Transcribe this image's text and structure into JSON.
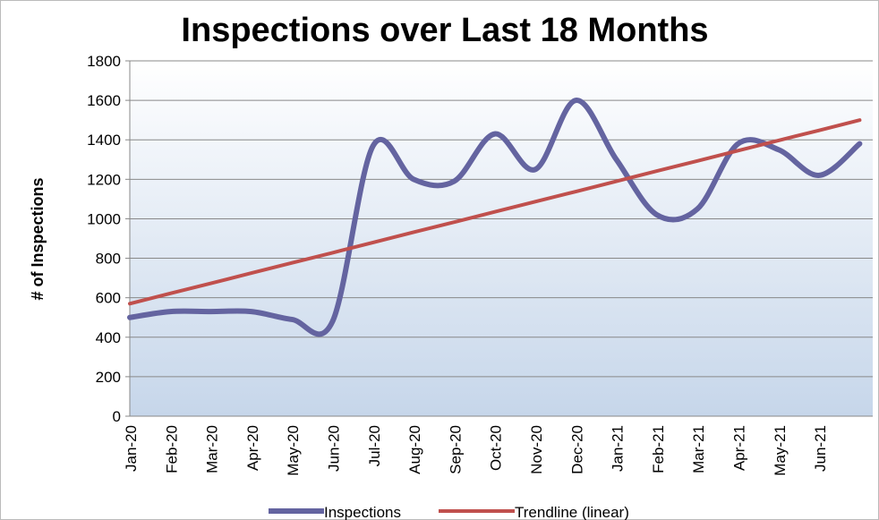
{
  "chart_data": {
    "type": "line",
    "title": "Inspections over Last 18 Months",
    "y_label": "# of Inspections",
    "categories": [
      "Jan-20",
      "Feb-20",
      "Mar-20",
      "Apr-20",
      "May-20",
      "Jun-20",
      "Jul-20",
      "Aug-20",
      "Sep-20",
      "Oct-20",
      "Nov-20",
      "Dec-20",
      "Jan-21",
      "Feb-21",
      "Mar-21",
      "Apr-21",
      "May-21",
      "Jun-21",
      null
    ],
    "series": [
      {
        "name": "Inspections",
        "color": "#6464a0",
        "smooth": true,
        "values": [
          500,
          530,
          530,
          530,
          490,
          480,
          1370,
          1200,
          1190,
          1430,
          1250,
          1600,
          1300,
          1020,
          1050,
          1380,
          1350,
          1220,
          1380
        ]
      },
      {
        "name": "Trendline (linear)",
        "color": "#c0504d",
        "smooth": false,
        "values": [
          570,
          622,
          673,
          725,
          777,
          828,
          880,
          932,
          983,
          1035,
          1087,
          1138,
          1190,
          1242,
          1293,
          1345,
          1397,
          1448,
          1500
        ]
      }
    ],
    "ylim": [
      0,
      1800
    ],
    "yticks": [
      0,
      200,
      400,
      600,
      800,
      1000,
      1200,
      1400,
      1600,
      1800
    ],
    "grid": true,
    "legend": "bottom"
  }
}
